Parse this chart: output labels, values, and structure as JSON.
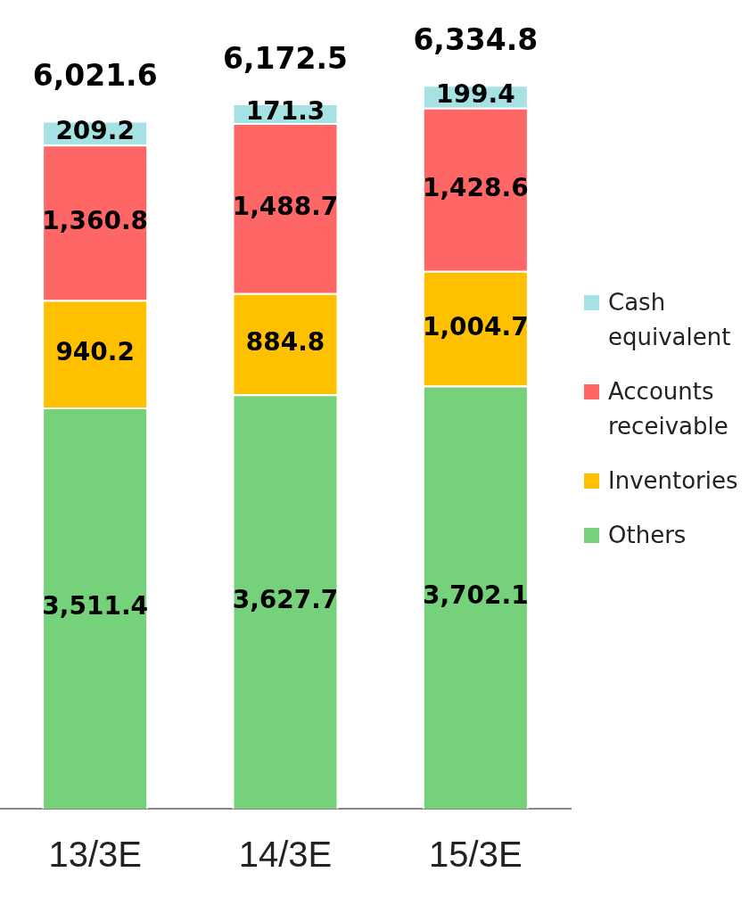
{
  "chart_data": {
    "type": "bar",
    "stacked": true,
    "categories": [
      "13/3E",
      "14/3E",
      "15/3E"
    ],
    "series": [
      {
        "name": "Others",
        "color": "#76d27a",
        "values": [
          3511.4,
          3627.7,
          3702.1
        ],
        "value_labels": [
          "3,511.4",
          "3,627.7",
          "3,702.1"
        ]
      },
      {
        "name": "Inventories",
        "color": "#ffc000",
        "values": [
          940.2,
          884.8,
          1004.7
        ],
        "value_labels": [
          "940.2",
          "884.8",
          "1,004.7"
        ]
      },
      {
        "name": "Accounts receivable",
        "color": "#ff6666",
        "values": [
          1360.8,
          1488.7,
          1428.6
        ],
        "value_labels": [
          "1,360.8",
          "1,488.7",
          "1,428.6"
        ]
      },
      {
        "name": "Cash equivalent",
        "color": "#a6e1e3",
        "values": [
          209.2,
          171.3,
          199.4
        ],
        "value_labels": [
          "209.2",
          "171.3",
          "199.4"
        ]
      }
    ],
    "totals": [
      "6,021.6",
      "6,172.5",
      "6,334.8"
    ],
    "legend": "right",
    "grid": false
  }
}
